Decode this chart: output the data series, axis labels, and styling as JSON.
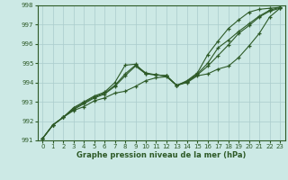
{
  "title": "Graphe pression niveau de la mer (hPa)",
  "bg_color": "#cce9e5",
  "grid_color": "#aacccc",
  "line_color": "#2d5a27",
  "xlim": [
    -0.5,
    23.5
  ],
  "ylim": [
    991,
    998
  ],
  "xticks": [
    0,
    1,
    2,
    3,
    4,
    5,
    6,
    7,
    8,
    9,
    10,
    11,
    12,
    13,
    14,
    15,
    16,
    17,
    18,
    19,
    20,
    21,
    22,
    23
  ],
  "yticks": [
    991,
    992,
    993,
    994,
    995,
    996,
    997,
    998
  ],
  "series": [
    [
      991.1,
      991.8,
      992.2,
      992.55,
      992.75,
      993.05,
      993.2,
      993.45,
      993.55,
      993.8,
      994.1,
      994.25,
      994.3,
      993.85,
      994.0,
      994.35,
      994.45,
      994.7,
      994.85,
      995.3,
      995.9,
      996.55,
      997.4,
      997.85
    ],
    [
      991.1,
      991.8,
      992.2,
      992.6,
      992.9,
      993.2,
      993.4,
      993.8,
      994.35,
      994.85,
      994.45,
      994.4,
      994.35,
      993.85,
      994.05,
      994.4,
      994.85,
      995.4,
      995.95,
      996.55,
      996.95,
      997.4,
      997.7,
      997.85
    ],
    [
      991.1,
      991.8,
      992.2,
      992.65,
      992.95,
      993.25,
      993.45,
      993.85,
      994.45,
      994.9,
      994.5,
      994.4,
      994.35,
      993.85,
      994.05,
      994.45,
      995.0,
      995.8,
      996.2,
      996.65,
      997.05,
      997.45,
      997.75,
      997.9
    ],
    [
      991.1,
      991.8,
      992.2,
      992.7,
      993.0,
      993.3,
      993.5,
      994.0,
      994.9,
      994.95,
      994.45,
      994.4,
      994.35,
      993.85,
      994.1,
      994.5,
      995.45,
      996.15,
      996.8,
      997.25,
      997.65,
      997.8,
      997.85,
      997.9
    ]
  ]
}
